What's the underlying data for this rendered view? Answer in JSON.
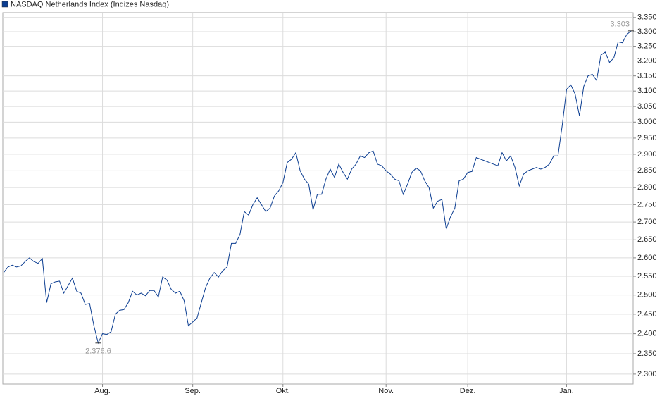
{
  "chart_data": {
    "type": "line",
    "series": [
      {
        "name": "NASDAQ Netherlands Index  (Indizes Nasdaq)",
        "color": "#0b3d91",
        "values": [
          2560,
          2575,
          2580,
          2575,
          2578,
          2590,
          2600,
          2590,
          2585,
          2598,
          2480,
          2530,
          2535,
          2537,
          2505,
          2525,
          2545,
          2510,
          2505,
          2475,
          2478,
          2420,
          2376.6,
          2400,
          2398,
          2405,
          2450,
          2460,
          2462,
          2480,
          2510,
          2500,
          2505,
          2498,
          2512,
          2512,
          2495,
          2548,
          2540,
          2515,
          2505,
          2510,
          2485,
          2420,
          2430,
          2440,
          2480,
          2520,
          2545,
          2560,
          2548,
          2565,
          2575,
          2640,
          2640,
          2665,
          2730,
          2720,
          2750,
          2770,
          2750,
          2730,
          2740,
          2775,
          2790,
          2815,
          2875,
          2885,
          2905,
          2850,
          2825,
          2810,
          2735,
          2780,
          2780,
          2825,
          2855,
          2830,
          2870,
          2845,
          2825,
          2855,
          2870,
          2895,
          2890,
          2905,
          2910,
          2870,
          2865,
          2850,
          2840,
          2825,
          2820,
          2780,
          2810,
          2845,
          2858,
          2850,
          2820,
          2800,
          2740,
          2760,
          2765,
          2680,
          2715,
          2740,
          2820,
          2825,
          2845,
          2848,
          2890,
          2885,
          2880,
          2875,
          2870,
          2865,
          2905,
          2880,
          2895,
          2860,
          2805,
          2840,
          2850,
          2855,
          2860,
          2855,
          2860,
          2870,
          2895,
          2895,
          2990,
          3105,
          3120,
          3090,
          3020,
          3115,
          3150,
          3155,
          3135,
          3220,
          3230,
          3195,
          3210,
          3265,
          3262,
          3290,
          3303
        ]
      }
    ],
    "xlim": [
      -0.2,
      146.5
    ],
    "xticks": [
      {
        "value": 23,
        "label": "Aug."
      },
      {
        "value": 44,
        "label": "Sep."
      },
      {
        "value": 65,
        "label": "Okt."
      },
      {
        "value": 89,
        "label": "Nov."
      },
      {
        "value": 108,
        "label": "Dez."
      },
      {
        "value": 131,
        "label": "Jan."
      }
    ],
    "ylim": [
      2276,
      3367
    ],
    "log_scale": true,
    "yticks": [
      {
        "value": 2300,
        "label": "2.300"
      },
      {
        "value": 2350,
        "label": "2.350"
      },
      {
        "value": 2400,
        "label": "2.400"
      },
      {
        "value": 2450,
        "label": "2.450"
      },
      {
        "value": 2500,
        "label": "2.500"
      },
      {
        "value": 2550,
        "label": "2.550"
      },
      {
        "value": 2600,
        "label": "2.600"
      },
      {
        "value": 2650,
        "label": "2.650"
      },
      {
        "value": 2700,
        "label": "2.700"
      },
      {
        "value": 2750,
        "label": "2.750"
      },
      {
        "value": 2800,
        "label": "2.800"
      },
      {
        "value": 2850,
        "label": "2.850"
      },
      {
        "value": 2900,
        "label": "2.900"
      },
      {
        "value": 2950,
        "label": "2.950"
      },
      {
        "value": 3000,
        "label": "3.000"
      },
      {
        "value": 3050,
        "label": "3.050"
      },
      {
        "value": 3100,
        "label": "3.100"
      },
      {
        "value": 3150,
        "label": "3.150"
      },
      {
        "value": 3200,
        "label": "3.200"
      },
      {
        "value": 3250,
        "label": "3.250"
      },
      {
        "value": 3300,
        "label": "3.300"
      },
      {
        "value": 3350,
        "label": "3.350"
      }
    ],
    "grid": true,
    "annotations": [
      {
        "text": "2.376,6",
        "x": 22,
        "y": 2376.6,
        "position": "below"
      },
      {
        "text": "3.303",
        "x": 146,
        "y": 3303,
        "position": "above"
      }
    ]
  }
}
